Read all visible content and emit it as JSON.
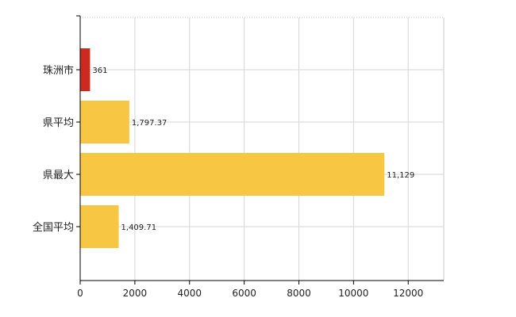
{
  "chart_data": {
    "type": "bar",
    "orientation": "horizontal",
    "categories": [
      "珠洲市",
      "県平均",
      "県最大",
      "全国平均"
    ],
    "values": [
      361,
      1797.37,
      11129,
      1409.71
    ],
    "value_labels": [
      "361",
      "1,797.37",
      "11,129",
      "1,409.71"
    ],
    "bar_colors": [
      "#cc2a1f",
      "#f7c744",
      "#f7c744",
      "#f7c744"
    ],
    "xlim": [
      0,
      13300
    ],
    "xticks": [
      0,
      2000,
      4000,
      6000,
      8000,
      10000,
      12000
    ],
    "xtick_labels": [
      "0",
      "2000",
      "4000",
      "6000",
      "8000",
      "10000",
      "12000"
    ],
    "grid": true,
    "title": "",
    "xlabel": "",
    "ylabel": ""
  }
}
